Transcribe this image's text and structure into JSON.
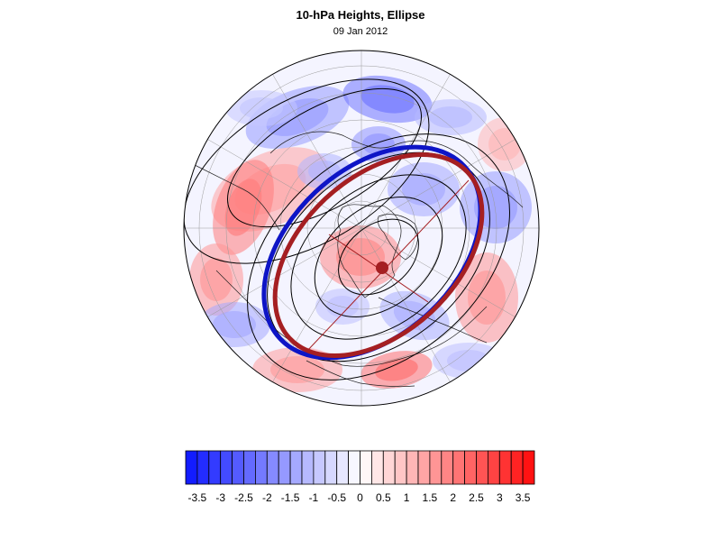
{
  "map": {
    "title": "10-hPa Heights, Ellipse",
    "date": "09 Jan 2012",
    "projection": "polar-stereographic-north",
    "colormap": {
      "negative_color": "#0a14ff",
      "zero_color": "#ffffff",
      "positive_color": "#ff0a0a"
    },
    "ellipses": [
      {
        "name": "",
        "color": "#0e15c6"
      },
      {
        "name": "",
        "color": "#a51f22"
      }
    ],
    "center_marker_color": "#a51f22",
    "colorbar": {
      "min": -3.75,
      "max": 3.75,
      "step": 0.25,
      "tick_labels": [
        "-3.5",
        "-3",
        "-2.5",
        "-2",
        "-1.5",
        "-1",
        "-0.5",
        "0",
        "0.5",
        "1",
        "1.5",
        "2",
        "2.5",
        "3",
        "3.5"
      ],
      "tick_values": [
        -3.5,
        -3,
        -2.5,
        -2,
        -1.5,
        -1,
        -0.5,
        0,
        0.5,
        1,
        1.5,
        2,
        2.5,
        3,
        3.5
      ]
    }
  }
}
